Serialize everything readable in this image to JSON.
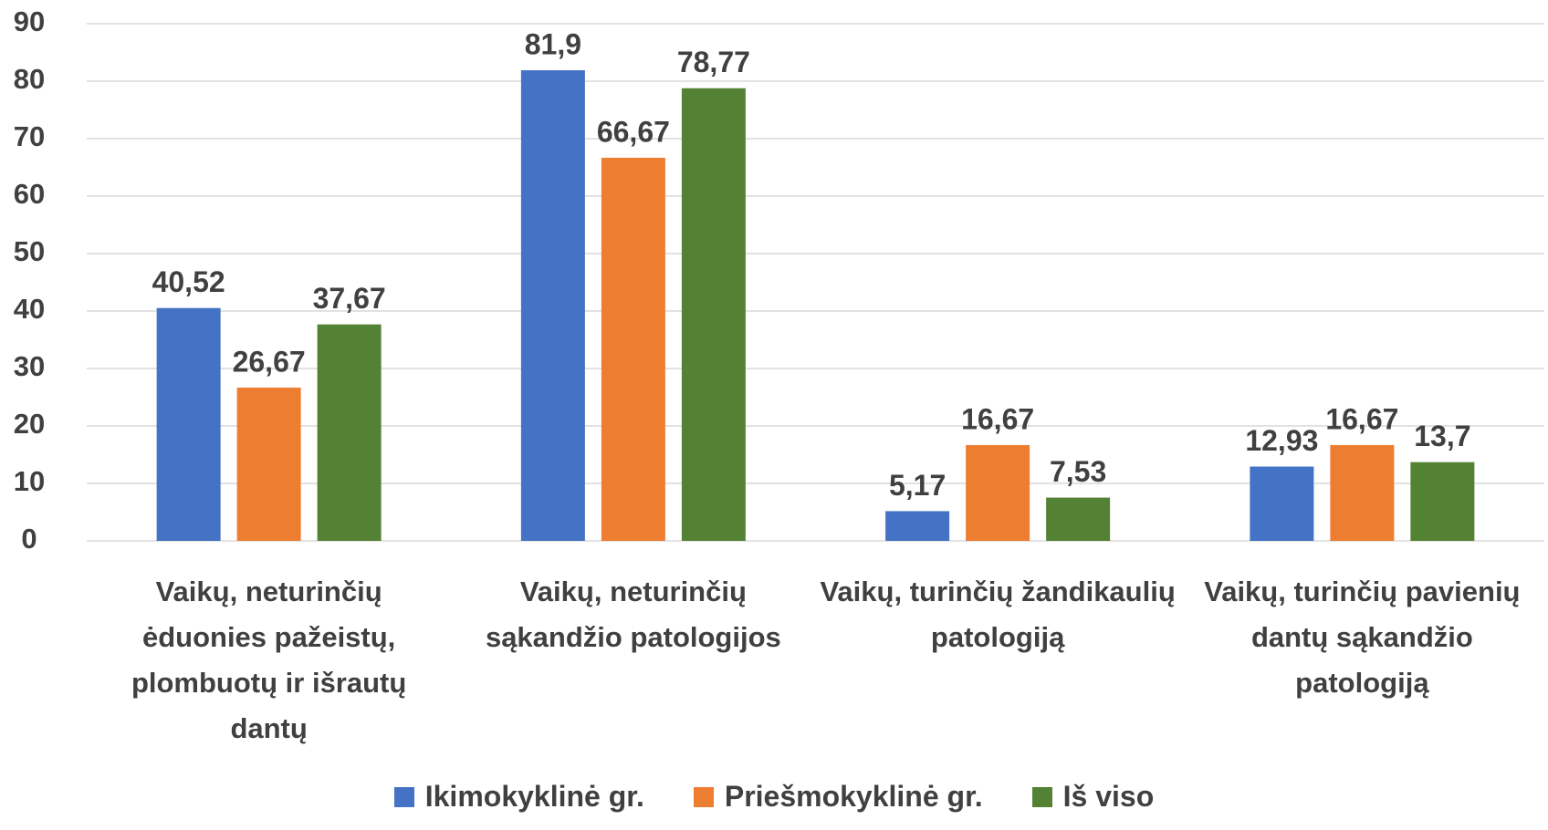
{
  "chart_data": {
    "type": "bar",
    "categories": [
      "Vaikų, neturinčių ėduonies pažeistų, plombuotų ir išrautų dantų",
      "Vaikų, neturinčių sąkandžio patologijos",
      "Vaikų, turinčių žandikaulių patologiją",
      "Vaikų, turinčių pavienių dantų sąkandžio patologiją"
    ],
    "series": [
      {
        "name": "Ikimokyklinė gr.",
        "color": "#4472c4",
        "values": [
          40.52,
          81.9,
          5.17,
          12.93
        ],
        "value_labels": [
          "40,52",
          "81,9",
          "5,17",
          "12,93"
        ]
      },
      {
        "name": "Priešmokyklinė gr.",
        "color": "#ed7d31",
        "values": [
          26.67,
          66.67,
          16.67,
          16.67
        ],
        "value_labels": [
          "26,67",
          "66,67",
          "16,67",
          "16,67"
        ]
      },
      {
        "name": "Iš viso",
        "color": "#548235",
        "values": [
          37.67,
          78.77,
          7.53,
          13.7
        ],
        "value_labels": [
          "37,67",
          "78,77",
          "7,53",
          "13,7"
        ]
      }
    ],
    "ylim": [
      0,
      90
    ],
    "yticks": [
      0,
      10,
      20,
      30,
      40,
      50,
      60,
      70,
      80,
      90
    ],
    "grid": true,
    "legend": "bottom"
  }
}
